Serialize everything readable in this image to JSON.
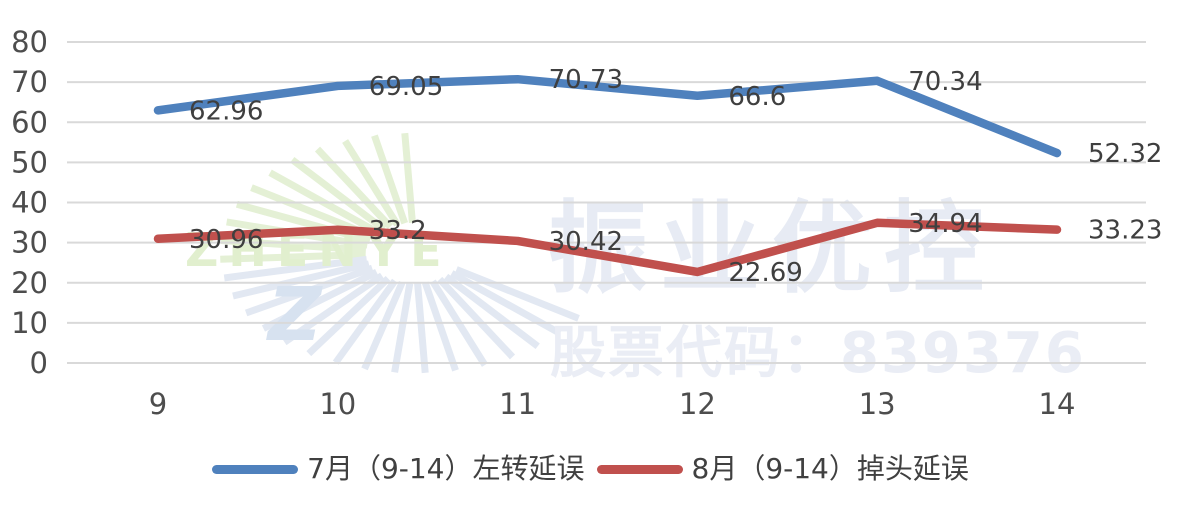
{
  "chart_data": {
    "type": "line",
    "x": [
      9,
      10,
      11,
      12,
      13,
      14
    ],
    "series": [
      {
        "name": "7月（9-14）左转延误",
        "values": [
          62.96,
          69.05,
          70.73,
          66.6,
          70.34,
          52.32
        ],
        "color": "#4F81BD"
      },
      {
        "name": "8月（9-14）掉头延误",
        "values": [
          30.96,
          33.2,
          30.42,
          22.69,
          34.94,
          33.23
        ],
        "color": "#C0504D"
      }
    ],
    "title": "",
    "xlabel": "",
    "ylabel": "",
    "ylim": [
      0,
      80
    ],
    "ytick_step": 10,
    "yticks": [
      0,
      10,
      20,
      30,
      40,
      50,
      60,
      70,
      80
    ],
    "grid": true,
    "legend_position": "bottom"
  },
  "watermark": {
    "title": "振业优控",
    "subtitle": "股票代码：839376",
    "logo_text": "ZHENYE",
    "title_color": "#E7EBF4",
    "subtitle_color": "#EAEDF5",
    "logo_green": "#E4F0D5",
    "logo_text_green": "#E1EFCE",
    "logo_blue": "#E2E8F2",
    "logo_z_blue": "#D7E2F0"
  },
  "colors": {
    "background": "#FFFFFF",
    "grid": "#D9D9D9",
    "axis_text": "#4D4D4D",
    "label_text": "#3F3F3F",
    "legend_text": "#404040"
  }
}
